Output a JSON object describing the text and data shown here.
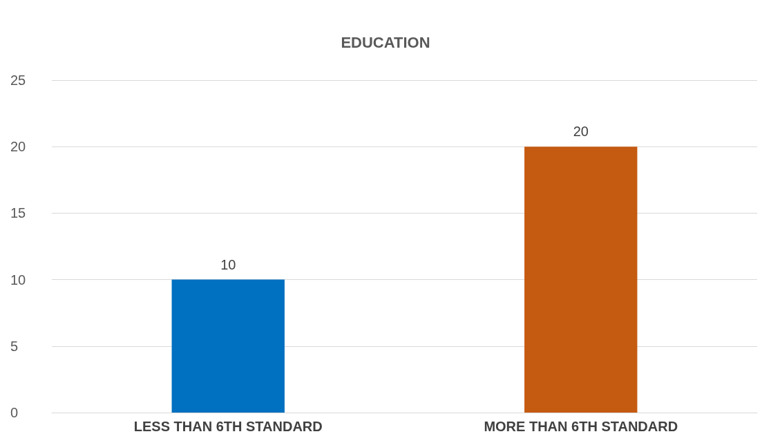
{
  "chart_data": {
    "type": "bar",
    "title": "EDUCATION",
    "categories": [
      "LESS THAN 6TH STANDARD",
      "MORE THAN 6TH STANDARD"
    ],
    "values": [
      10,
      20
    ],
    "colors": [
      "#0070c0",
      "#c55a11"
    ],
    "ylim": [
      0,
      25
    ],
    "yticks": [
      0,
      5,
      10,
      15,
      20,
      25
    ],
    "grid": "y",
    "data_labels": true
  }
}
